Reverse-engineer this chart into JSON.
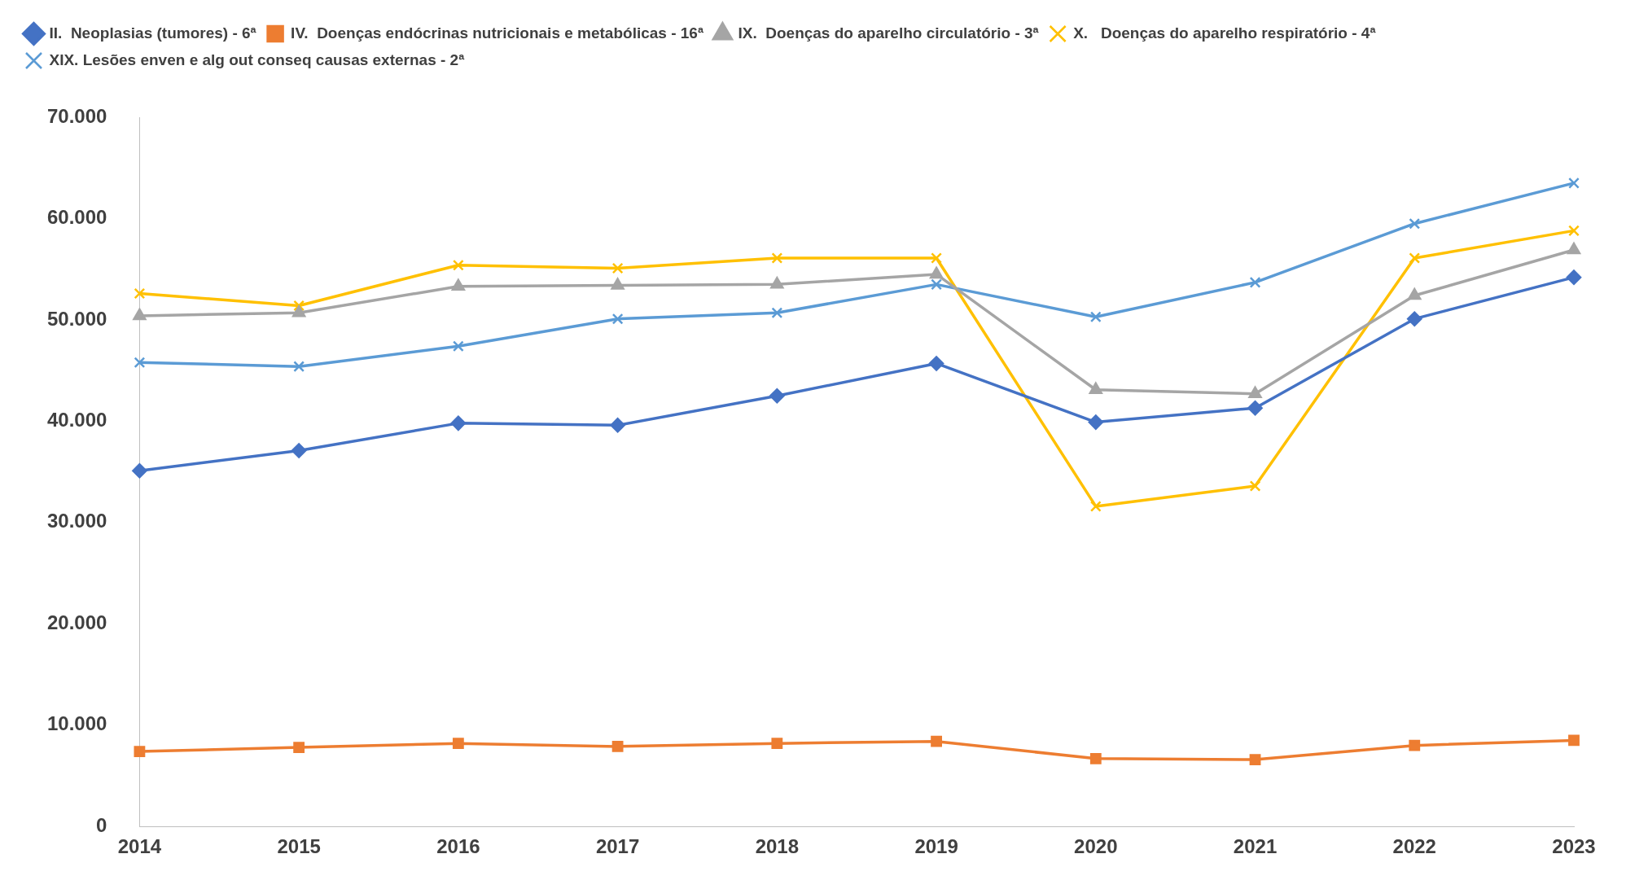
{
  "chart_data": {
    "type": "line",
    "categories": [
      "2014",
      "2015",
      "2016",
      "2017",
      "2018",
      "2019",
      "2020",
      "2021",
      "2022",
      "2023"
    ],
    "series": [
      {
        "name": "II.  Neoplasias (tumores) - 6ª",
        "color": "#4472c4",
        "marker": "diamond",
        "values": [
          35100,
          37100,
          39800,
          39600,
          42500,
          45700,
          39900,
          41300,
          50100,
          54200
        ]
      },
      {
        "name": "IV.  Doenças endócrinas nutricionais e metabólicas - 16ª",
        "color": "#ed7d31",
        "marker": "square",
        "values": [
          7400,
          7800,
          8200,
          7900,
          8200,
          8400,
          6700,
          6600,
          8000,
          8500
        ]
      },
      {
        "name": "IX.  Doenças do aparelho circulatório - 3ª",
        "color": "#a5a5a5",
        "marker": "triangle",
        "values": [
          50400,
          50700,
          53300,
          53400,
          53500,
          54500,
          43100,
          42700,
          52400,
          56900
        ]
      },
      {
        "name": "X.   Doenças do aparelho respiratório - 4ª",
        "color": "#ffc000",
        "marker": "cross",
        "values": [
          52600,
          51400,
          55400,
          55100,
          56100,
          56100,
          31600,
          33600,
          56100,
          58800
        ]
      },
      {
        "name": "XIX. Lesões enven e alg out conseq causas externas - 2ª",
        "color": "#5b9bd5",
        "marker": "cross",
        "values": [
          45800,
          45400,
          47400,
          50100,
          50700,
          53500,
          50300,
          53700,
          59500,
          63500
        ]
      }
    ],
    "ylim": [
      0,
      70000
    ],
    "yticks": [
      0,
      {
        "value": 10000,
        "label": "10.000"
      },
      {
        "value": 20000,
        "label": "20.000"
      },
      {
        "value": 30000,
        "label": "30.000"
      },
      {
        "value": 40000,
        "label": "40.000"
      },
      {
        "value": 50000,
        "label": "50.000"
      },
      {
        "value": 60000,
        "label": "60.000"
      },
      {
        "value": 70000,
        "label": "70.000"
      }
    ],
    "grid": false,
    "legend": "top left",
    "line_style": "solid"
  }
}
